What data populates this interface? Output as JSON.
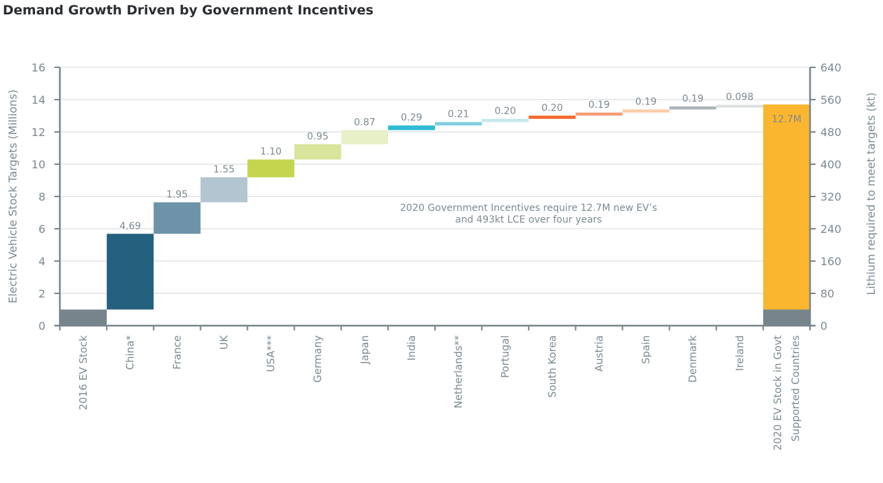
{
  "chart_data": {
    "type": "bar",
    "subtype": "waterfall",
    "title": "Demand Growth Driven by Government Incentives",
    "ylabel": "Electric Vehicle Stock Targets (Millions)",
    "y2label": "Lithium required to meet targets (kt)",
    "ylim": [
      0,
      16
    ],
    "y2lim": [
      0,
      640
    ],
    "yticks": [
      "0",
      "2",
      "4",
      "6",
      "8",
      "10",
      "12",
      "14",
      "16"
    ],
    "y2ticks": [
      "0",
      "80",
      "160",
      "240",
      "320",
      "400",
      "480",
      "560",
      "640"
    ],
    "grid": true,
    "base_value": 1.0,
    "categories": [
      "2016 EV Stock",
      "China*",
      "France",
      "UK",
      "USA***",
      "Germany",
      "Japan",
      "India",
      "Netherlands**",
      "Portugal",
      "South Korea",
      "Austria",
      "Spain",
      "Denmark",
      "Ireland",
      "2020 EV Stock in Govt Supported Countries"
    ],
    "category_lines": [
      [
        "2016 EV Stock"
      ],
      [
        "China*"
      ],
      [
        "France"
      ],
      [
        "UK"
      ],
      [
        "USA***"
      ],
      [
        "Germany"
      ],
      [
        "Japan"
      ],
      [
        "India"
      ],
      [
        "Netherlands**"
      ],
      [
        "Portugal"
      ],
      [
        "South Korea"
      ],
      [
        "Austria"
      ],
      [
        "Spain"
      ],
      [
        "Denmark"
      ],
      [
        "Ireland"
      ],
      [
        "2020 EV Stock in Govt",
        "Supported Countries"
      ]
    ],
    "increments": [
      null,
      4.69,
      1.95,
      1.55,
      1.1,
      0.95,
      0.87,
      0.29,
      0.21,
      0.2,
      0.2,
      0.19,
      0.19,
      0.19,
      0.098,
      null
    ],
    "value_labels": [
      "",
      "4.69",
      "1.95",
      "1.55",
      "1.10",
      "0.95",
      "0.87",
      "0.29",
      "0.21",
      "0.20",
      "0.20",
      "0.19",
      "0.19",
      "0.19",
      "0.098",
      "12.7M"
    ],
    "colors": [
      "#76858b",
      "#24617f",
      "#6e93a8",
      "#b3c5d1",
      "#c3d64e",
      "#d9e59c",
      "#e8f0c8",
      "#2fbbd3",
      "#7fcfdf",
      "#c6e8ef",
      "#f26a2a",
      "#f59e73",
      "#fbcba8",
      "#aeb3b5",
      "#dcdfe0",
      "#fbb630"
    ],
    "total": {
      "base": 1.0,
      "new": 12.7,
      "base_color": "#76858b",
      "label": "12.7M"
    },
    "annotation": [
      "2020 Government Incentives require 12.7M new EV’s",
      "and 493kt LCE over four years"
    ]
  }
}
